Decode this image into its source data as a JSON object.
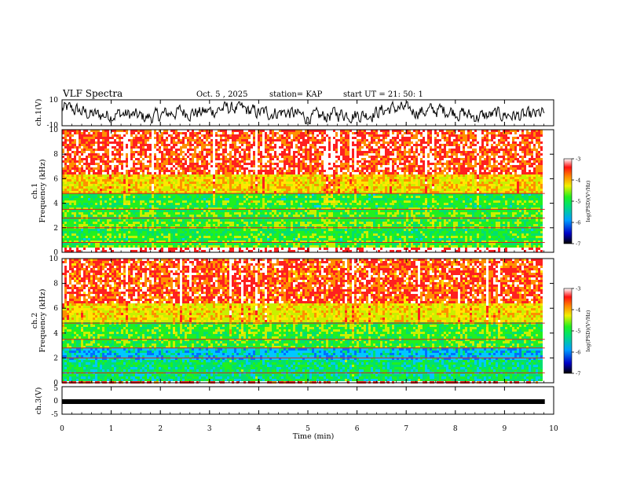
{
  "header": {
    "title": "VLF Spectra",
    "date": "Oct. 5 , 2025",
    "station": "station= KAP",
    "start_ut": "start UT =  21: 50: 1"
  },
  "chart_data": [
    {
      "type": "line",
      "panel": "ch1-waveform",
      "ylabel": "ch.1(V)",
      "ylim": [
        -10,
        10
      ],
      "yticks": [
        "10",
        "-10"
      ],
      "description_values": "noisy signal roughly between -8 and +8 V"
    },
    {
      "type": "heatmap",
      "panel": "ch1-spectrogram",
      "ylabel": "ch.1\nFrequency (kHz)",
      "ylabel_line1": "ch.1",
      "ylabel_line2": "Frequency (kHz)",
      "ylim": [
        0,
        10
      ],
      "yticks": [
        "0",
        "2",
        "4",
        "6",
        "8",
        "10"
      ],
      "colorbar": {
        "label": "log(PSD)(V²/Hz)",
        "range": [
          -7,
          -3
        ],
        "ticks": [
          "-3",
          "-4",
          "-5",
          "-6",
          "-7"
        ]
      }
    },
    {
      "type": "heatmap",
      "panel": "ch2-spectrogram",
      "ylabel_line1": "ch.2",
      "ylabel_line2": "Frequency (kHz)",
      "ylim": [
        0,
        10
      ],
      "yticks": [
        "0",
        "2",
        "4",
        "6",
        "8",
        "10"
      ],
      "colorbar": {
        "label": "log(PSD)(V²/Hz)",
        "range": [
          -7,
          -3
        ],
        "ticks": [
          "-3",
          "-4",
          "-5",
          "-6",
          "-7"
        ]
      }
    },
    {
      "type": "line",
      "panel": "ch3-waveform",
      "ylabel": "ch.3(V)",
      "ylim": [
        -5,
        5
      ],
      "yticks": [
        "5",
        "0",
        "-5"
      ],
      "value": 0
    }
  ],
  "xaxis": {
    "label": "Time (min)",
    "range": [
      0,
      10
    ],
    "ticks": [
      "0",
      "1",
      "2",
      "3",
      "4",
      "5",
      "6",
      "7",
      "8",
      "9",
      "10"
    ],
    "data_end": 9.82
  }
}
